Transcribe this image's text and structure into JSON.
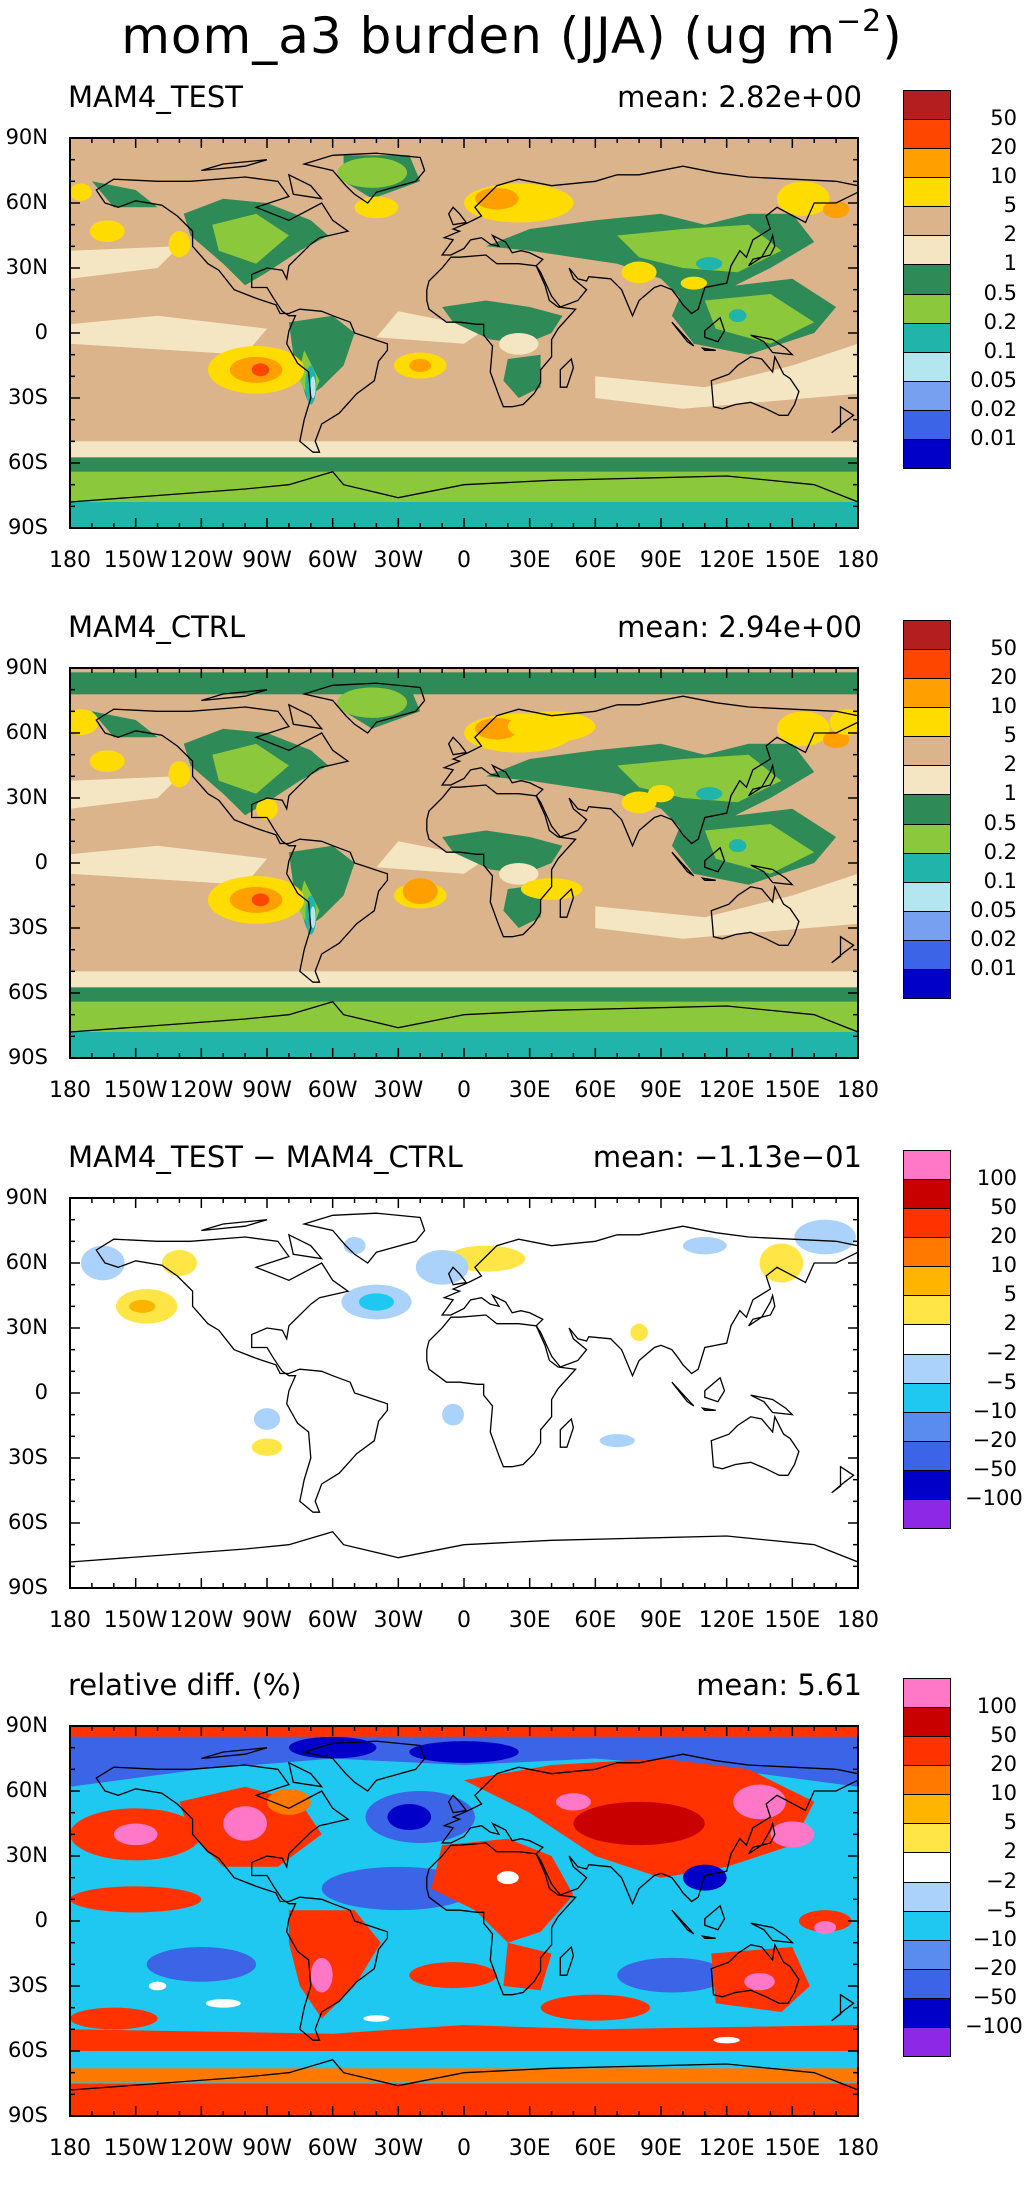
{
  "title": {
    "main": "mom_a3 burden (JJA) (ug m",
    "sup": "−2",
    "close": ")"
  },
  "lat_ticks": [
    "90N",
    "60N",
    "30N",
    "0",
    "30S",
    "60S",
    "90S"
  ],
  "lon_ticks": [
    "180",
    "150W",
    "120W",
    "90W",
    "60W",
    "30W",
    "0",
    "30E",
    "60E",
    "90E",
    "120E",
    "150E",
    "180"
  ],
  "colors": {
    "abs": [
      "#0000c8",
      "#3c64e6",
      "#78a0f0",
      "#b4e6f0",
      "#20b4aa",
      "#8cc83c",
      "#2e8b57",
      "#f5e6c3",
      "#dcb48c",
      "#ffdc00",
      "#ffa000",
      "#ff4600",
      "#b41e1e"
    ],
    "diff": [
      "#8c28e6",
      "#0000c8",
      "#3c64e6",
      "#5a8cf0",
      "#1ec8f0",
      "#aad2fa",
      "#ffffff",
      "#ffe646",
      "#ffb400",
      "#ff7800",
      "#ff3200",
      "#c80000",
      "#ff78c8"
    ]
  },
  "panels": [
    {
      "title": "MAM4_TEST",
      "mean": "mean: 2.82e+00",
      "cmap": "abs",
      "labels": [
        "50",
        "20",
        "10",
        "5",
        "2",
        "1",
        "0.5",
        "0.2",
        "0.1",
        "0.05",
        "0.02",
        "0.01"
      ],
      "field": "test",
      "background_bin": 8
    },
    {
      "title": "MAM4_CTRL",
      "mean": "mean: 2.94e+00",
      "cmap": "abs",
      "labels": [
        "50",
        "20",
        "10",
        "5",
        "2",
        "1",
        "0.5",
        "0.2",
        "0.1",
        "0.05",
        "0.02",
        "0.01"
      ],
      "field": "ctrl",
      "background_bin": 8
    },
    {
      "title": "MAM4_TEST − MAM4_CTRL",
      "mean": "mean: −1.13e−01",
      "cmap": "diff",
      "labels": [
        "100",
        "50",
        "20",
        "10",
        "5",
        "2",
        "−2",
        "−5",
        "−10",
        "−20",
        "−50",
        "−100"
      ],
      "field": "diff",
      "background_bin": 6
    },
    {
      "title": "relative diff. (%)",
      "mean": "mean:   5.61",
      "cmap": "diff",
      "labels": [
        "100",
        "50",
        "20",
        "10",
        "5",
        "2",
        "−2",
        "−5",
        "−10",
        "−20",
        "−50",
        "−100"
      ],
      "field": "rel",
      "background_bin": 4
    }
  ]
}
